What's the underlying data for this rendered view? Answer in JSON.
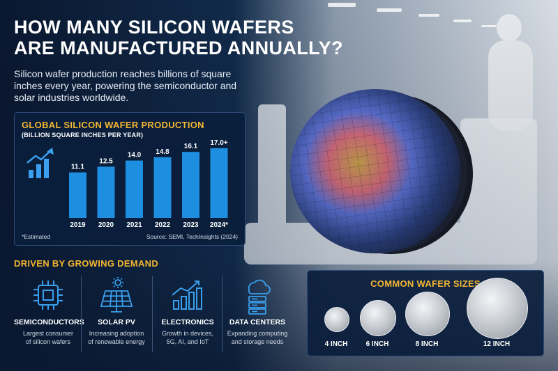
{
  "headline": {
    "line1": "HOW MANY SILICON WAFERS",
    "line2": "ARE MANUFACTURED ANNUALLY?"
  },
  "subtitle": "Silicon wafer production reaches billions of square inches every year, powering the semiconductor and solar industries worldwide.",
  "chart_panel": {
    "title": "GLOBAL SILICON WAFER PRODUCTION",
    "subtitle": "(BILLION SQUARE INCHES PER YEAR)",
    "note": "*Estimated",
    "source": "Source: SEMI, TechInsights (2024)",
    "icon": "growth-chart-icon"
  },
  "chart_data": {
    "type": "bar",
    "categories": [
      "2019",
      "2020",
      "2021",
      "2022",
      "2023",
      "2024*"
    ],
    "values": [
      11.1,
      12.5,
      14.0,
      14.8,
      16.1,
      17.0
    ],
    "data_labels": [
      "11.1",
      "12.5",
      "14.0",
      "14.8",
      "16.1",
      "17.0+"
    ],
    "title": "GLOBAL SILICON WAFER PRODUCTION",
    "ylabel": "(BILLION SQUARE INCHES PER YEAR)",
    "ylim": [
      0,
      17.5
    ],
    "grid": false,
    "bar_color": "#1e8fe0"
  },
  "demand": {
    "title": "DRIVEN BY GROWING DEMAND",
    "items": [
      {
        "icon": "chip-icon",
        "label": "SEMICONDUCTORS",
        "desc1": "Largest consumer",
        "desc2": "of silicon wafers"
      },
      {
        "icon": "solar-panel-icon",
        "label": "SOLAR PV",
        "desc1": "Increasing adoption",
        "desc2": "of renewable energy"
      },
      {
        "icon": "growth-chart-icon",
        "label": "ELECTRONICS",
        "desc1": "Growth in devices,",
        "desc2": "5G, AI, and IoT"
      },
      {
        "icon": "cloud-server-icon",
        "label": "DATA CENTERS",
        "desc1": "Expanding computing",
        "desc2": "and storage needs"
      }
    ]
  },
  "wafer_sizes": {
    "title": "COMMON WAFER SIZES",
    "items": [
      {
        "label": "4 INCH"
      },
      {
        "label": "6 INCH"
      },
      {
        "label": "8 INCH"
      },
      {
        "label": "12 INCH"
      }
    ]
  },
  "colors": {
    "accent": "#f2b632",
    "bar": "#1e8fe0",
    "panel": "#0a1e3c",
    "icon": "#3aa0ee"
  }
}
